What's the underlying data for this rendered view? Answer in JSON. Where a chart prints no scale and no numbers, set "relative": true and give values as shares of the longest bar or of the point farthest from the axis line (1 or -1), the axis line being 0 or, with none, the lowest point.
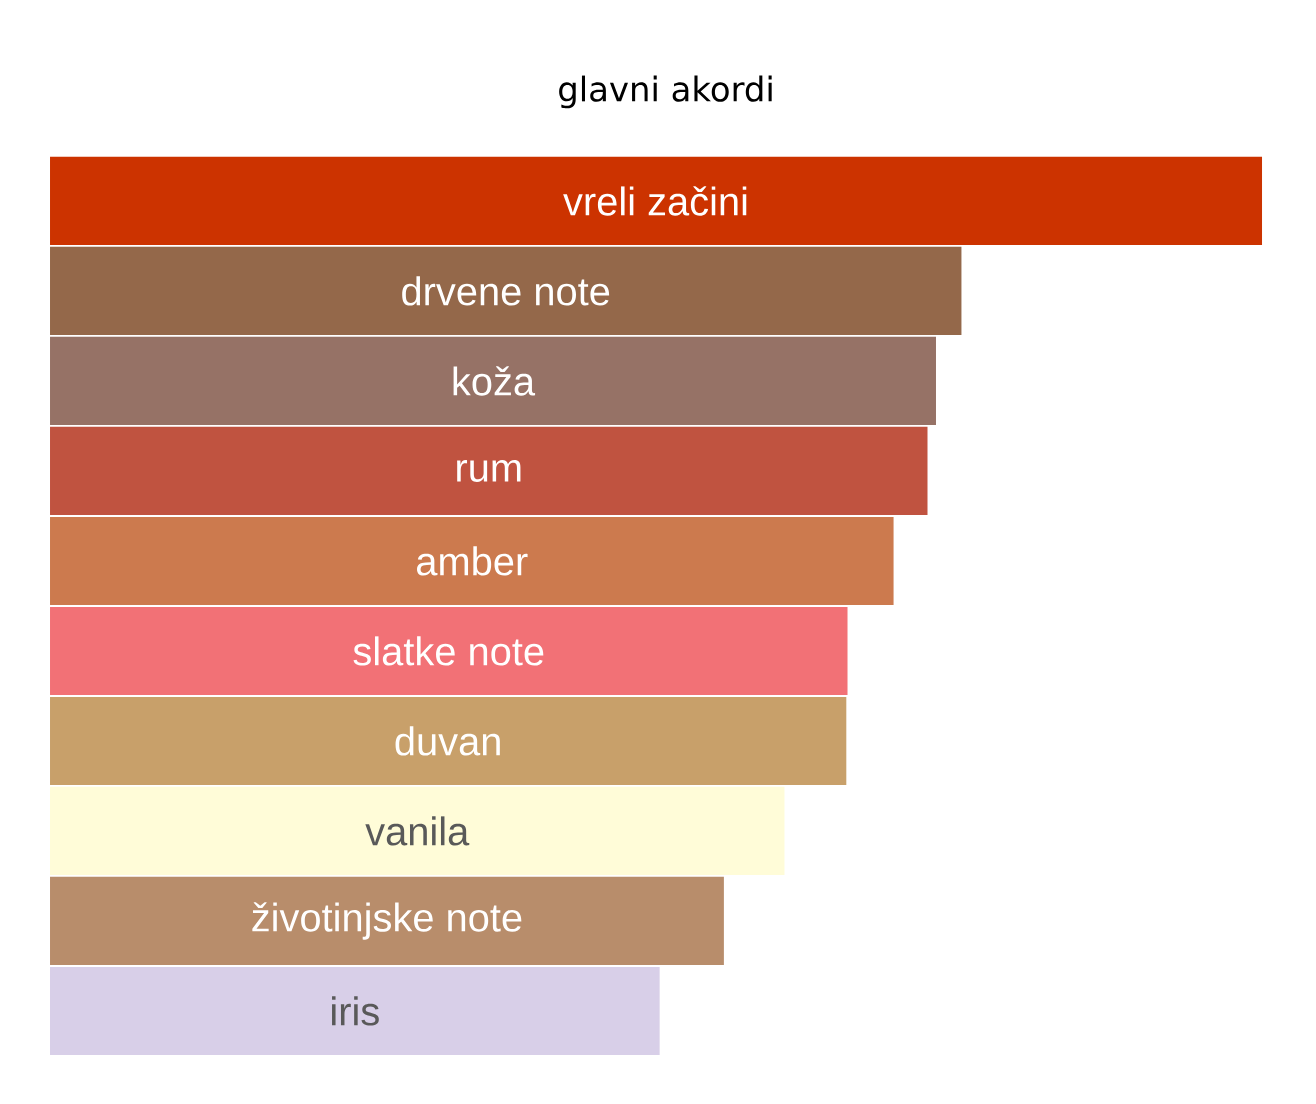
{
  "chart_data": {
    "type": "bar",
    "orientation": "horizontal",
    "relative": true,
    "title": "glavni akordi",
    "categories": [
      "vreli začini",
      "drvene note",
      "koža",
      "rum",
      "amber",
      "slatke note",
      "duvan",
      "vanila",
      "životinjske note",
      "iris"
    ],
    "values": [
      1,
      0.752,
      0.731,
      0.724,
      0.696,
      0.658,
      0.657,
      0.606,
      0.556,
      0.503
    ],
    "colors": [
      "#cc3300",
      "#94684a",
      "#967266",
      "#c05340",
      "#cc7a4e",
      "#f27176",
      "#c8a06a",
      "#fffcd8",
      "#b88d6b",
      "#d8cfe8"
    ]
  }
}
